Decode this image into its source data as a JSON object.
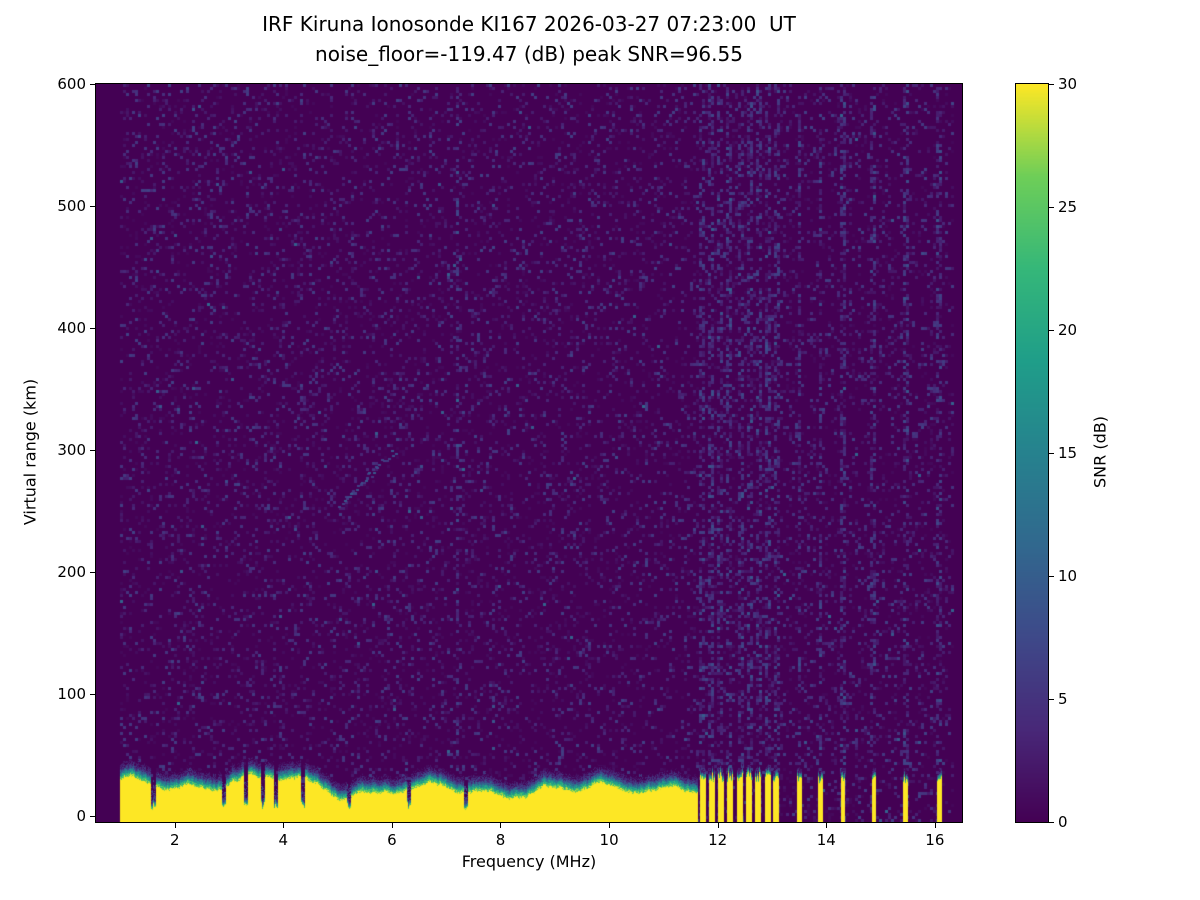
{
  "chart_data": {
    "type": "heatmap",
    "title": "IRF Kiruna Ionosonde KI167 2026-03-27 07:23:00  UT",
    "subtitle": "noise_floor=-119.47 (dB) peak SNR=96.55",
    "xlabel": "Frequency (MHz)",
    "ylabel": "Virtual range (km)",
    "colorbar_label": "SNR (dB)",
    "xlim": [
      0.55,
      16.5
    ],
    "ylim": [
      -5,
      600
    ],
    "xticks": [
      2,
      4,
      6,
      8,
      10,
      12,
      14,
      16
    ],
    "yticks": [
      0,
      100,
      200,
      300,
      400,
      500,
      600
    ],
    "colorbar_ticks": [
      0,
      5,
      10,
      15,
      20,
      25,
      30
    ],
    "snr_range": [
      0,
      30
    ],
    "noise_floor_db": -119.47,
    "peak_snr_db": 96.55,
    "colormap": {
      "name": "viridis",
      "stops": [
        [
          0.0,
          "#440154"
        ],
        [
          0.125,
          "#482878"
        ],
        [
          0.25,
          "#3e4989"
        ],
        [
          0.375,
          "#31688e"
        ],
        [
          0.5,
          "#26828e"
        ],
        [
          0.625,
          "#1f9e89"
        ],
        [
          0.75,
          "#35b779"
        ],
        [
          0.875,
          "#6ece58"
        ],
        [
          1.0,
          "#fde725"
        ]
      ]
    },
    "data_extent": {
      "f_min": 1.0,
      "f_max": 16.3
    },
    "ground_band": {
      "f_start": 1.0,
      "f_end": 11.62,
      "top_km_mean": 35,
      "top_km_jitter": 9,
      "peak_snr_db": 30,
      "notch_freqs": [
        1.6,
        2.9,
        3.3,
        3.62,
        3.85,
        4.35,
        5.2,
        6.3,
        7.35
      ]
    },
    "stripe_groups": [
      {
        "freqs": [
          11.72,
          11.88,
          12.05,
          12.22,
          12.4,
          12.57,
          12.74,
          12.91,
          13.07
        ],
        "width_mhz": 0.09,
        "top_km": 36
      },
      {
        "freqs": [
          13.5,
          13.88,
          14.3,
          14.87,
          15.45,
          16.08
        ],
        "width_mhz": 0.07,
        "top_km": 33
      }
    ],
    "faint_vertical_lines": [
      7.2
    ],
    "echo_trace": {
      "f_start": 5.0,
      "f_end": 6.05,
      "km_start": 255,
      "km_end": 300,
      "snr_db": 8
    },
    "noise": {
      "fill_prob": 0.18,
      "max_db": 6,
      "bright_prob": 0.012,
      "bright_max_db": 11
    }
  }
}
